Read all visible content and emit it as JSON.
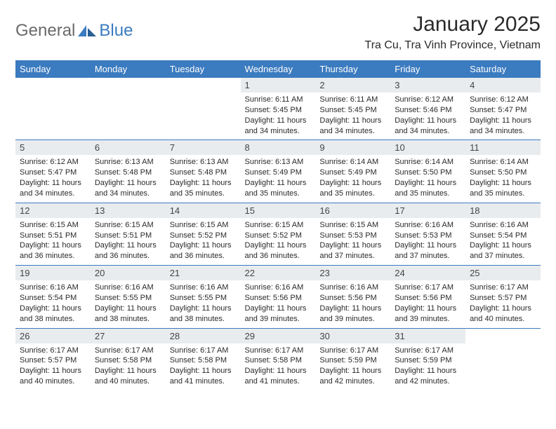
{
  "logo": {
    "text1": "General",
    "text2": "Blue"
  },
  "title": "January 2025",
  "location": "Tra Cu, Tra Vinh Province, Vietnam",
  "colors": {
    "header_bg": "#3b7bbf",
    "header_text": "#ffffff",
    "daynum_bg": "#e9ecef",
    "cell_border": "#3b7bbf",
    "logo_gray": "#6a6a6a",
    "logo_blue": "#3b7bbf"
  },
  "fonts": {
    "title_size": 30,
    "location_size": 16,
    "dow_size": 13,
    "daynum_size": 13,
    "body_size": 11
  },
  "dow": [
    "Sunday",
    "Monday",
    "Tuesday",
    "Wednesday",
    "Thursday",
    "Friday",
    "Saturday"
  ],
  "weeks": [
    [
      null,
      null,
      null,
      {
        "n": "1",
        "sr": "6:11 AM",
        "ss": "5:45 PM",
        "dl": "11 hours and 34 minutes."
      },
      {
        "n": "2",
        "sr": "6:11 AM",
        "ss": "5:45 PM",
        "dl": "11 hours and 34 minutes."
      },
      {
        "n": "3",
        "sr": "6:12 AM",
        "ss": "5:46 PM",
        "dl": "11 hours and 34 minutes."
      },
      {
        "n": "4",
        "sr": "6:12 AM",
        "ss": "5:47 PM",
        "dl": "11 hours and 34 minutes."
      }
    ],
    [
      {
        "n": "5",
        "sr": "6:12 AM",
        "ss": "5:47 PM",
        "dl": "11 hours and 34 minutes."
      },
      {
        "n": "6",
        "sr": "6:13 AM",
        "ss": "5:48 PM",
        "dl": "11 hours and 34 minutes."
      },
      {
        "n": "7",
        "sr": "6:13 AM",
        "ss": "5:48 PM",
        "dl": "11 hours and 35 minutes."
      },
      {
        "n": "8",
        "sr": "6:13 AM",
        "ss": "5:49 PM",
        "dl": "11 hours and 35 minutes."
      },
      {
        "n": "9",
        "sr": "6:14 AM",
        "ss": "5:49 PM",
        "dl": "11 hours and 35 minutes."
      },
      {
        "n": "10",
        "sr": "6:14 AM",
        "ss": "5:50 PM",
        "dl": "11 hours and 35 minutes."
      },
      {
        "n": "11",
        "sr": "6:14 AM",
        "ss": "5:50 PM",
        "dl": "11 hours and 35 minutes."
      }
    ],
    [
      {
        "n": "12",
        "sr": "6:15 AM",
        "ss": "5:51 PM",
        "dl": "11 hours and 36 minutes."
      },
      {
        "n": "13",
        "sr": "6:15 AM",
        "ss": "5:51 PM",
        "dl": "11 hours and 36 minutes."
      },
      {
        "n": "14",
        "sr": "6:15 AM",
        "ss": "5:52 PM",
        "dl": "11 hours and 36 minutes."
      },
      {
        "n": "15",
        "sr": "6:15 AM",
        "ss": "5:52 PM",
        "dl": "11 hours and 36 minutes."
      },
      {
        "n": "16",
        "sr": "6:15 AM",
        "ss": "5:53 PM",
        "dl": "11 hours and 37 minutes."
      },
      {
        "n": "17",
        "sr": "6:16 AM",
        "ss": "5:53 PM",
        "dl": "11 hours and 37 minutes."
      },
      {
        "n": "18",
        "sr": "6:16 AM",
        "ss": "5:54 PM",
        "dl": "11 hours and 37 minutes."
      }
    ],
    [
      {
        "n": "19",
        "sr": "6:16 AM",
        "ss": "5:54 PM",
        "dl": "11 hours and 38 minutes."
      },
      {
        "n": "20",
        "sr": "6:16 AM",
        "ss": "5:55 PM",
        "dl": "11 hours and 38 minutes."
      },
      {
        "n": "21",
        "sr": "6:16 AM",
        "ss": "5:55 PM",
        "dl": "11 hours and 38 minutes."
      },
      {
        "n": "22",
        "sr": "6:16 AM",
        "ss": "5:56 PM",
        "dl": "11 hours and 39 minutes."
      },
      {
        "n": "23",
        "sr": "6:16 AM",
        "ss": "5:56 PM",
        "dl": "11 hours and 39 minutes."
      },
      {
        "n": "24",
        "sr": "6:17 AM",
        "ss": "5:56 PM",
        "dl": "11 hours and 39 minutes."
      },
      {
        "n": "25",
        "sr": "6:17 AM",
        "ss": "5:57 PM",
        "dl": "11 hours and 40 minutes."
      }
    ],
    [
      {
        "n": "26",
        "sr": "6:17 AM",
        "ss": "5:57 PM",
        "dl": "11 hours and 40 minutes."
      },
      {
        "n": "27",
        "sr": "6:17 AM",
        "ss": "5:58 PM",
        "dl": "11 hours and 40 minutes."
      },
      {
        "n": "28",
        "sr": "6:17 AM",
        "ss": "5:58 PM",
        "dl": "11 hours and 41 minutes."
      },
      {
        "n": "29",
        "sr": "6:17 AM",
        "ss": "5:58 PM",
        "dl": "11 hours and 41 minutes."
      },
      {
        "n": "30",
        "sr": "6:17 AM",
        "ss": "5:59 PM",
        "dl": "11 hours and 42 minutes."
      },
      {
        "n": "31",
        "sr": "6:17 AM",
        "ss": "5:59 PM",
        "dl": "11 hours and 42 minutes."
      },
      null
    ]
  ],
  "labels": {
    "sunrise": "Sunrise:",
    "sunset": "Sunset:",
    "daylight": "Daylight:"
  }
}
